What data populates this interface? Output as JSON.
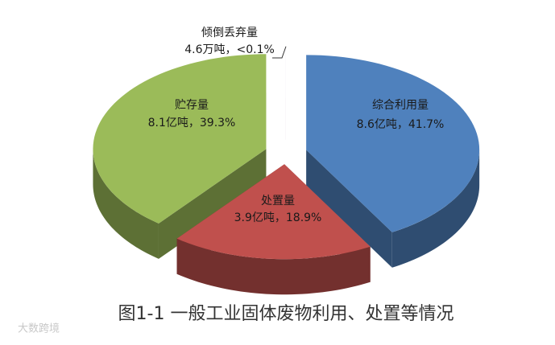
{
  "chart_data": {
    "type": "pie3d",
    "title": "图1-1 一般工业固体废物利用、处置等情况",
    "watermark": "大数跨境",
    "categories": [
      "综合利用量",
      "处置量",
      "贮存量",
      "倾倒丢弃量"
    ],
    "values": [
      41.7,
      18.9,
      39.3,
      0.002
    ],
    "value_labels": [
      "8.6亿吨，41.7%",
      "3.9亿吨，18.9%",
      "8.1亿吨，39.3%",
      "4.6万吨，<0.1%"
    ],
    "colors": [
      "#4f81bd",
      "#c0504d",
      "#9bbb59",
      "#8064a2"
    ]
  }
}
